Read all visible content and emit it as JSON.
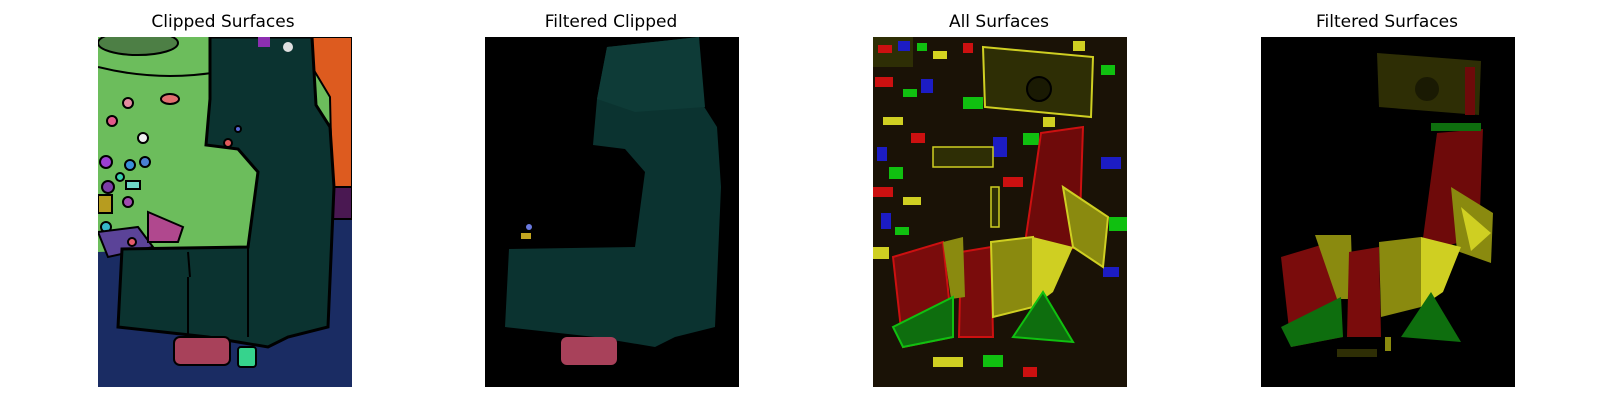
{
  "figure": {
    "panels": [
      {
        "title": "Clipped Surfaces"
      },
      {
        "title": "Filtered Clipped"
      },
      {
        "title": "All Surfaces"
      },
      {
        "title": "Filtered Surfaces"
      }
    ]
  },
  "colors": {
    "building_teal": "#0b3330",
    "lawn_green": "#6cbd5c",
    "road_navy": "#1a2c63",
    "orange": "#dd5b1f",
    "pink_patch": "#a8415a",
    "mint_patch": "#36d38d",
    "roof_dark_olive": "#2e2e05",
    "roof_red": "#7a0c0c",
    "roof_olive": "#8a8a0f",
    "roof_yellow": "#cfcf22",
    "roof_green": "#0e6e0e",
    "background_black": "#000000"
  }
}
